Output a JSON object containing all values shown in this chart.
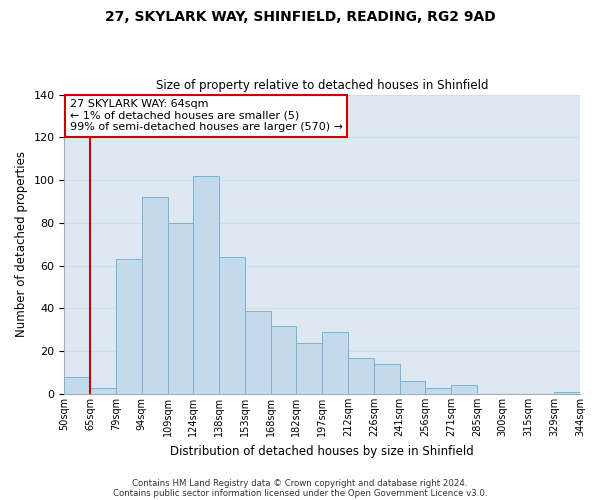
{
  "title": "27, SKYLARK WAY, SHINFIELD, READING, RG2 9AD",
  "subtitle": "Size of property relative to detached houses in Shinfield",
  "xlabel": "Distribution of detached houses by size in Shinfield",
  "ylabel": "Number of detached properties",
  "bin_labels": [
    "50sqm",
    "65sqm",
    "79sqm",
    "94sqm",
    "109sqm",
    "124sqm",
    "138sqm",
    "153sqm",
    "168sqm",
    "182sqm",
    "197sqm",
    "212sqm",
    "226sqm",
    "241sqm",
    "256sqm",
    "271sqm",
    "285sqm",
    "300sqm",
    "315sqm",
    "329sqm",
    "344sqm"
  ],
  "bar_values": [
    8,
    3,
    63,
    92,
    80,
    102,
    64,
    39,
    32,
    24,
    29,
    17,
    14,
    6,
    3,
    4,
    0,
    0,
    0,
    1
  ],
  "bar_color": "#c5d9ec",
  "bar_edge_color": "#7ab3d4",
  "highlight_bar_index": 1,
  "highlight_color": "#cc0000",
  "ylim": [
    0,
    140
  ],
  "yticks": [
    0,
    20,
    40,
    60,
    80,
    100,
    120,
    140
  ],
  "annotation_title": "27 SKYLARK WAY: 64sqm",
  "annotation_line1": "← 1% of detached houses are smaller (5)",
  "annotation_line2": "99% of semi-detached houses are larger (570) →",
  "footer_line1": "Contains HM Land Registry data © Crown copyright and database right 2024.",
  "footer_line2": "Contains public sector information licensed under the Open Government Licence v3.0.",
  "background_color": "#ffffff",
  "grid_color": "#d0dce8"
}
